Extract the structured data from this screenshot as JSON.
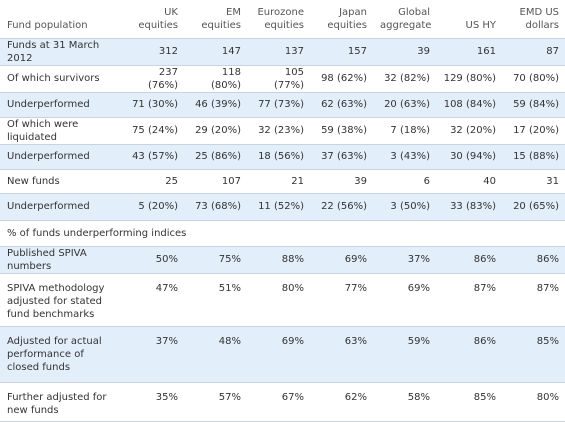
{
  "header": {
    "label": "Fund population",
    "columns": [
      [
        "UK",
        "equities"
      ],
      [
        "EM",
        "equities"
      ],
      [
        "Eurozone",
        "equities"
      ],
      [
        "Japan",
        "equities"
      ],
      [
        "Global",
        "aggregate"
      ],
      [
        "",
        "US HY"
      ],
      [
        "EMD US",
        "dollars"
      ]
    ]
  },
  "rows_top": [
    {
      "label": "Funds at 31 March 2012",
      "values": [
        "312",
        "147",
        "137",
        "157",
        "39",
        "161",
        "87"
      ]
    },
    {
      "label": "Of which survivors",
      "values": [
        "237 (76%)",
        "118 (80%)",
        "105 (77%)",
        "98 (62%)",
        "32 (82%)",
        "129 (80%)",
        "70 (80%)"
      ]
    },
    {
      "label": "Underperformed",
      "values": [
        "71 (30%)",
        "46 (39%)",
        "77 (73%)",
        "62 (63%)",
        "20 (63%)",
        "108 (84%)",
        "59 (84%)"
      ]
    },
    {
      "label": "Of which were liquidated",
      "values": [
        "75 (24%)",
        "29 (20%)",
        "32 (23%)",
        "59 (38%)",
        "7 (18%)",
        "32 (20%)",
        "17 (20%)"
      ]
    },
    {
      "label": "Underperformed",
      "values": [
        "43 (57%)",
        "25 (86%)",
        "18 (56%)",
        "37 (63%)",
        "3 (43%)",
        "30 (94%)",
        "15 (88%)"
      ]
    },
    {
      "label": "New funds",
      "values": [
        "25",
        "107",
        "21",
        "39",
        "6",
        "40",
        "31"
      ]
    },
    {
      "label": "Underperformed",
      "values": [
        "5 (20%)",
        "73 (68%)",
        "11 (52%)",
        "22 (56%)",
        "3 (50%)",
        "33 (83%)",
        "20 (65%)"
      ]
    }
  ],
  "section_title": "% of funds underperforming indices",
  "rows_bottom": [
    {
      "label": "Published SPIVA numbers",
      "values": [
        "50%",
        "75%",
        "88%",
        "69%",
        "37%",
        "86%",
        "86%"
      ]
    },
    {
      "label": "SPIVA methodology adjusted for stated fund benchmarks",
      "values": [
        "47%",
        "51%",
        "80%",
        "77%",
        "69%",
        "87%",
        "87%"
      ]
    },
    {
      "label": "Adjusted for actual performance of closed funds",
      "values": [
        "37%",
        "48%",
        "69%",
        "63%",
        "59%",
        "86%",
        "85%"
      ]
    },
    {
      "label": "Further adjusted for new funds",
      "values": [
        "35%",
        "57%",
        "67%",
        "62%",
        "58%",
        "85%",
        "80%"
      ]
    }
  ]
}
